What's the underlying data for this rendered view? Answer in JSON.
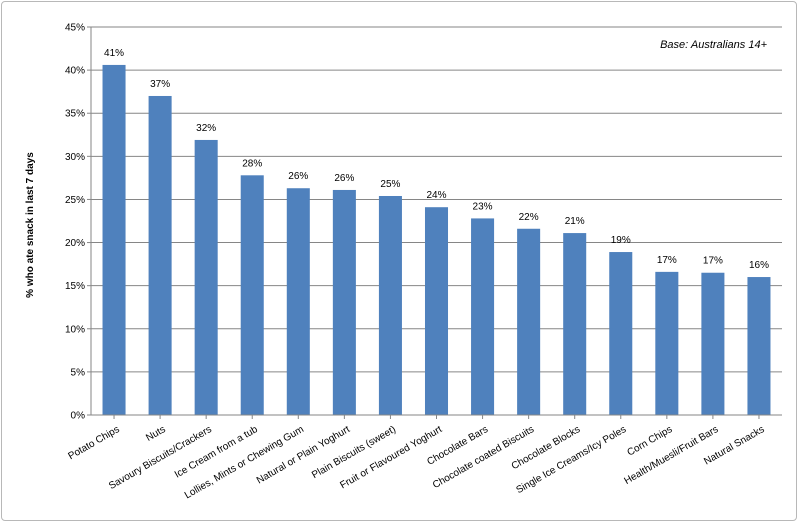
{
  "chart_data": {
    "type": "bar",
    "ylabel": "% who ate snack in last 7 days",
    "xlabel": "",
    "annotation": "Base: Australians 14+",
    "ylim": [
      0,
      45
    ],
    "y_ticks": [
      "0%",
      "5%",
      "10%",
      "15%",
      "20%",
      "25%",
      "30%",
      "35%",
      "40%",
      "45%"
    ],
    "grid": true,
    "bar_color": "#4f81bd",
    "categories": [
      "Potato Chips",
      "Nuts",
      "Savoury Biscuits/Crackers",
      "Ice Cream from a tub",
      "Lollies, Mints or Chewing Gum",
      "Natural or Plain Yoghurt",
      "Plain Biscuits (sweet)",
      "Fruit or Flavoured Yoghurt",
      "Chocolate Bars",
      "Chocolate coated Biscuits",
      "Chocolate Blocks",
      "Single Ice Creams/Icy Poles",
      "Corn Chips",
      "Health/Muesli/Fruit Bars",
      "Natural Snacks"
    ],
    "values": [
      40.6,
      37.0,
      31.9,
      27.8,
      26.3,
      26.1,
      25.4,
      24.1,
      22.8,
      21.6,
      21.1,
      18.9,
      16.6,
      16.5,
      16.0
    ],
    "data_labels": [
      "41%",
      "37%",
      "32%",
      "28%",
      "26%",
      "26%",
      "25%",
      "24%",
      "23%",
      "22%",
      "21%",
      "19%",
      "17%",
      "17%",
      "16%"
    ]
  }
}
